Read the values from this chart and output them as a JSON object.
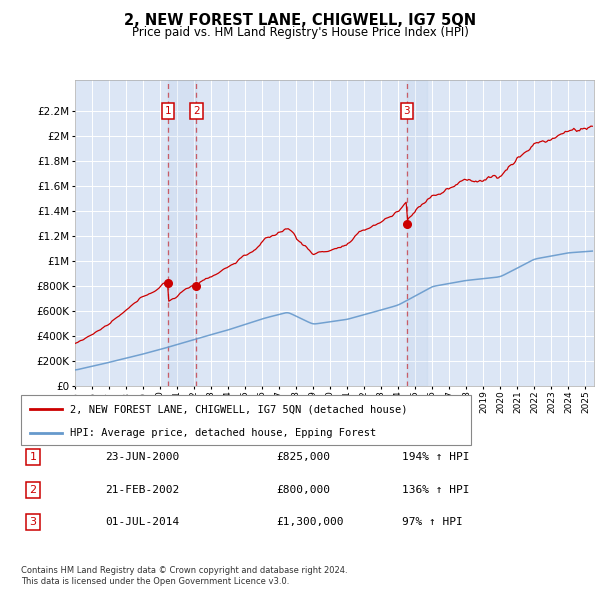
{
  "title": "2, NEW FOREST LANE, CHIGWELL, IG7 5QN",
  "subtitle": "Price paid vs. HM Land Registry's House Price Index (HPI)",
  "legend_line1": "2, NEW FOREST LANE, CHIGWELL, IG7 5QN (detached house)",
  "legend_line2": "HPI: Average price, detached house, Epping Forest",
  "transactions": [
    {
      "num": 1,
      "date": "23-JUN-2000",
      "year": 2000.48,
      "price": 825000,
      "pct": "194%",
      "dir": "↑"
    },
    {
      "num": 2,
      "date": "21-FEB-2002",
      "year": 2002.13,
      "price": 800000,
      "pct": "136%",
      "dir": "↑"
    },
    {
      "num": 3,
      "date": "01-JUL-2014",
      "year": 2014.5,
      "price": 1300000,
      "pct": "97%",
      "dir": "↑"
    }
  ],
  "footer_line1": "Contains HM Land Registry data © Crown copyright and database right 2024.",
  "footer_line2": "This data is licensed under the Open Government Licence v3.0.",
  "ylim": [
    0,
    2400000
  ],
  "yticks": [
    0,
    200000,
    400000,
    600000,
    800000,
    1000000,
    1200000,
    1400000,
    1600000,
    1800000,
    2000000,
    2200000
  ],
  "xlim_start": 1995.0,
  "xlim_end": 2025.5,
  "red_color": "#cc0000",
  "blue_color": "#6699cc",
  "vline_color": "#cc0000",
  "box_color": "#cc0000",
  "background_plot": "#dce6f5",
  "background_fig": "#ffffff",
  "grid_color": "#ffffff"
}
